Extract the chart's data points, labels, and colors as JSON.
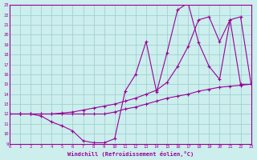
{
  "xlabel": "Windchill (Refroidissement éolien,°C)",
  "bg_color": "#cceeed",
  "line_color": "#990099",
  "grid_color": "#99cccc",
  "xlim": [
    0,
    23
  ],
  "ylim": [
    9,
    23
  ],
  "xticks": [
    0,
    1,
    2,
    3,
    4,
    5,
    6,
    7,
    8,
    9,
    10,
    11,
    12,
    13,
    14,
    15,
    16,
    17,
    18,
    19,
    20,
    21,
    22,
    23
  ],
  "yticks": [
    9,
    10,
    11,
    12,
    13,
    14,
    15,
    16,
    17,
    18,
    19,
    20,
    21,
    22,
    23
  ],
  "line1_x": [
    0,
    1,
    2,
    3,
    4,
    5,
    6,
    7,
    8,
    9,
    10,
    11,
    12,
    13,
    14,
    15,
    16,
    17,
    18,
    19,
    20,
    21,
    22,
    23
  ],
  "line1_y": [
    12.0,
    12.0,
    12.0,
    12.0,
    12.0,
    12.0,
    12.0,
    12.0,
    12.0,
    12.0,
    12.2,
    12.5,
    12.7,
    13.0,
    13.3,
    13.6,
    13.8,
    14.0,
    14.3,
    14.5,
    14.7,
    14.8,
    14.9,
    15.0
  ],
  "line2_x": [
    0,
    1,
    2,
    3,
    4,
    5,
    6,
    7,
    8,
    9,
    10,
    11,
    12,
    13,
    14,
    15,
    16,
    17,
    18,
    19,
    20,
    21,
    22,
    23
  ],
  "line2_y": [
    12.0,
    12.0,
    12.0,
    11.8,
    11.2,
    10.8,
    10.3,
    9.3,
    9.1,
    9.1,
    9.5,
    14.3,
    16.0,
    19.3,
    14.2,
    18.2,
    22.5,
    23.2,
    19.2,
    16.8,
    15.5,
    21.5,
    15.0,
    15.0
  ],
  "line3_x": [
    0,
    1,
    2,
    3,
    4,
    5,
    6,
    7,
    8,
    9,
    10,
    11,
    12,
    13,
    14,
    15,
    16,
    17,
    18,
    19,
    20,
    21,
    22,
    23
  ],
  "line3_y": [
    12.0,
    12.0,
    12.0,
    12.0,
    12.0,
    12.1,
    12.2,
    12.4,
    12.6,
    12.8,
    13.0,
    13.3,
    13.6,
    14.0,
    14.4,
    15.2,
    16.8,
    18.8,
    21.5,
    21.8,
    19.3,
    21.5,
    21.8,
    15.0
  ]
}
